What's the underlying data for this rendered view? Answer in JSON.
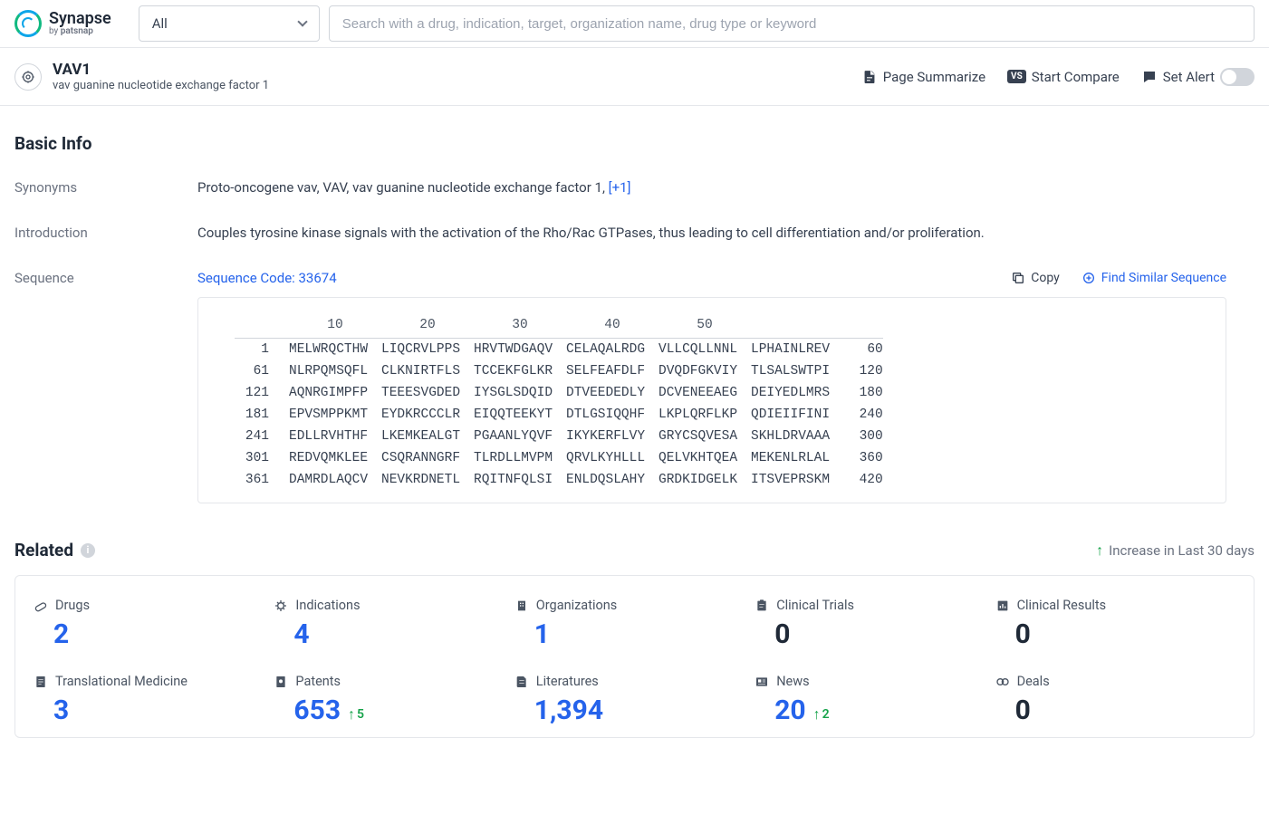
{
  "brand": {
    "title": "Synapse",
    "sub_prefix": "by ",
    "sub_bold": "patsnap"
  },
  "filter": {
    "selected": "All"
  },
  "search": {
    "placeholder": "Search with a drug, indication, target, organization name, drug type or keyword"
  },
  "entity": {
    "name": "VAV1",
    "desc": "vav guanine nucleotide exchange factor 1"
  },
  "actions": {
    "summarize": "Page Summarize",
    "compare": "Start Compare",
    "alert": "Set Alert"
  },
  "basic_info_title": "Basic Info",
  "synonyms": {
    "label": "Synonyms",
    "text": "Proto-oncogene vav,  VAV,  vav guanine nucleotide exchange factor 1,  ",
    "more": "[+1]"
  },
  "introduction": {
    "label": "Introduction",
    "text": "Couples tyrosine kinase signals with the activation of the Rho/Rac GTPases, thus leading to cell differentiation and/or proliferation."
  },
  "sequence": {
    "label": "Sequence",
    "code_label": "Sequence Code: 33674",
    "copy": "Copy",
    "find": "Find Similar Sequence",
    "ruler": [
      "10",
      "20",
      "30",
      "40",
      "50"
    ],
    "rows": [
      {
        "start": "1",
        "blocks": [
          "MELWRQCTHW",
          "LIQCRVLPPS",
          "HRVTWDGAQV",
          "CELAQALRDG",
          "VLLCQLLNNL",
          "LPHAINLREV"
        ],
        "end": "60"
      },
      {
        "start": "61",
        "blocks": [
          "NLRPQMSQFL",
          "CLKNIRTFLS",
          "TCCEKFGLKR",
          "SELFEAFDLF",
          "DVQDFGKVIY",
          "TLSALSWTPI"
        ],
        "end": "120"
      },
      {
        "start": "121",
        "blocks": [
          "AQNRGIMPFP",
          "TEEESVGDED",
          "IYSGLSDQID",
          "DTVEEDEDLY",
          "DCVENEEAEG",
          "DEIYEDLMRS"
        ],
        "end": "180"
      },
      {
        "start": "181",
        "blocks": [
          "EPVSMPPKMT",
          "EYDKRCCCLR",
          "EIQQTEEKYT",
          "DTLGSIQQHF",
          "LKPLQRFLKP",
          "QDIEIIFINI"
        ],
        "end": "240"
      },
      {
        "start": "241",
        "blocks": [
          "EDLLRVHTHF",
          "LKEMKEALGT",
          "PGAANLYQVF",
          "IKYKERFLVY",
          "GRYCSQVESA",
          "SKHLDRVAAA"
        ],
        "end": "300"
      },
      {
        "start": "301",
        "blocks": [
          "REDVQMKLEE",
          "CSQRANNGRF",
          "TLRDLLMVPM",
          "QRVLKYHLLL",
          "QELVKHTQEA",
          "MEKENLRLAL"
        ],
        "end": "360"
      },
      {
        "start": "361",
        "blocks": [
          "DAMRDLAQCV",
          "NEVKRDNETL",
          "RQITNFQLSI",
          "ENLDQSLAHY",
          "GRDKIDGELK",
          "ITSVEPRSKM"
        ],
        "end": "420"
      }
    ]
  },
  "related": {
    "title": "Related",
    "note": "Increase in Last 30 days",
    "colors": {
      "link": "#2563eb",
      "zero": "#1f2937",
      "up": "#16a34a"
    },
    "cards": [
      {
        "label": "Drugs",
        "value": "2",
        "zero": false,
        "inc": null,
        "icon": "pill"
      },
      {
        "label": "Indications",
        "value": "4",
        "zero": false,
        "inc": null,
        "icon": "virus"
      },
      {
        "label": "Organizations",
        "value": "1",
        "zero": false,
        "inc": null,
        "icon": "building"
      },
      {
        "label": "Clinical Trials",
        "value": "0",
        "zero": true,
        "inc": null,
        "icon": "clip"
      },
      {
        "label": "Clinical Results",
        "value": "0",
        "zero": true,
        "inc": null,
        "icon": "chart"
      },
      {
        "label": "Translational Medicine",
        "value": "3",
        "zero": false,
        "inc": null,
        "icon": "doc"
      },
      {
        "label": "Patents",
        "value": "653",
        "zero": false,
        "inc": "5",
        "icon": "patent"
      },
      {
        "label": "Literatures",
        "value": "1,394",
        "zero": false,
        "inc": null,
        "icon": "book"
      },
      {
        "label": "News",
        "value": "20",
        "zero": false,
        "inc": "2",
        "icon": "news"
      },
      {
        "label": "Deals",
        "value": "0",
        "zero": true,
        "inc": null,
        "icon": "deal"
      }
    ]
  }
}
